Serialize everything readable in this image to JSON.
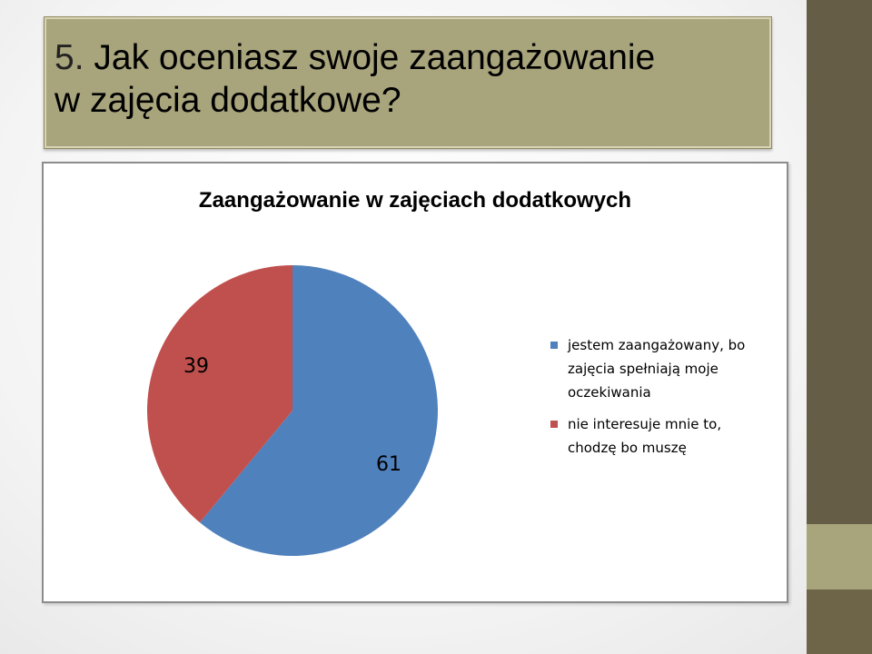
{
  "slide": {
    "title_number": "5.",
    "title_line1": "Jak oceniasz swoje zaangażowanie",
    "title_line2": "w zajęcia dodatkowe?"
  },
  "theme": {
    "title_bg": "#a8a47c",
    "band_color": "#665d46",
    "band_stripe": "#a8a47c"
  },
  "chart_data": {
    "type": "pie",
    "title": "Zaangażowanie w zajęciach dodatkowych",
    "slices": [
      {
        "label": "jestem zaangażowany, bo zajęcia spełniają moje oczekiwania",
        "legend_lines": [
          "jestem zaangażowany, bo",
          "zajęcia spełniają moje",
          "oczekiwania"
        ],
        "value": 61,
        "color": "#4f81bd"
      },
      {
        "label": "nie interesuje mnie to, chodzę bo muszę",
        "legend_lines": [
          "nie interesuje mnie to,",
          "chodzę bo muszę"
        ],
        "value": 39,
        "color": "#c0504d"
      }
    ],
    "legend_position": "right",
    "start_angle": "12 o'clock, clockwise"
  }
}
